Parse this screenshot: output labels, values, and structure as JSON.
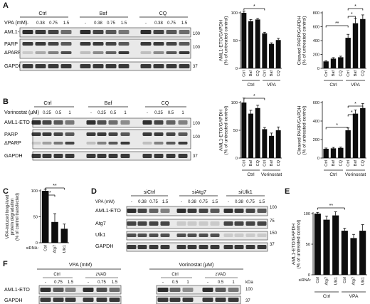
{
  "panel_letters": [
    "A",
    "B",
    "C",
    "D",
    "E",
    "F"
  ],
  "blots": {
    "A": {
      "groups": [
        "Ctrl",
        "Baf",
        "CQ"
      ],
      "dose_label": "VPA (mM)",
      "doses": [
        "-",
        "0.38",
        "0.75",
        "1.5",
        "-",
        "0.38",
        "0.75",
        "1.5",
        "-",
        "0.38",
        "0.75",
        "1.5"
      ],
      "rows": [
        "AML1-ETO",
        "PARP",
        "ΔPARP",
        "GAPDH"
      ],
      "mw": [
        "100",
        "100",
        "37"
      ]
    },
    "B": {
      "groups": [
        "Ctrl",
        "Baf",
        "CQ"
      ],
      "dose_label": "Vorinostat (μM)",
      "doses": [
        "-",
        "0.25",
        "0.5",
        "1",
        "-",
        "0.25",
        "0.5",
        "1",
        "-",
        "0.25",
        "0.5",
        "1"
      ],
      "rows": [
        "AML1-ETO",
        "PARP",
        "ΔPARP",
        "GAPDH"
      ],
      "mw": [
        "100",
        "100",
        "37"
      ]
    },
    "D": {
      "groups": [
        "siCtrl",
        "siAtg7",
        "siUlk1"
      ],
      "dose_label": "VPA (mM)",
      "doses": [
        "-",
        "0.38",
        "0.75",
        "1.5",
        "-",
        "0.38",
        "0.75",
        "1.5",
        "-",
        "0.38",
        "0.75",
        "1.5"
      ],
      "rows": [
        "AML1-ETO",
        "Atg7",
        "Ulk1",
        "GAPDH"
      ],
      "mw": [
        "100",
        "75",
        "150",
        "37"
      ]
    },
    "F": {
      "treatments": [
        "VPA (mM)",
        "Vorinostat (μM)"
      ],
      "groups": [
        "Ctrl",
        "zVAD",
        "Ctrl",
        "zVAD"
      ],
      "doses": [
        "-",
        "0.75",
        "1.5",
        "-",
        "0.75",
        "1.5",
        "-",
        "0.5",
        "1",
        "-",
        "0.5",
        "1"
      ],
      "rows": [
        "AML1-ETO",
        "GAPDH"
      ],
      "mw_unit": "kDa",
      "mw": [
        "100",
        "37"
      ]
    }
  },
  "chart_data": [
    {
      "id": "A-aml1eto",
      "type": "bar",
      "ylabel": "AML1-ETO/GAPDH\n(% of untreated control)",
      "ylim": [
        0,
        100
      ],
      "yticks": [
        "0",
        "50",
        "100"
      ],
      "categories": [
        "Ctrl",
        "Baf",
        "CQ",
        "Ctrl",
        "Baf",
        "CQ"
      ],
      "groups": [
        "Ctrl",
        "VPA"
      ],
      "values": [
        100,
        85,
        88,
        63,
        44,
        51
      ],
      "errors": [
        3,
        3,
        2,
        2,
        2,
        3
      ],
      "significance": [
        "*"
      ]
    },
    {
      "id": "A-parp",
      "type": "bar",
      "ylabel": "Cleaved PARP/GAPDH\n(% of untreated control)",
      "ylim": [
        0,
        800
      ],
      "yticks": [
        "0",
        "200",
        "400",
        "600",
        "800"
      ],
      "categories": [
        "Ctrl",
        "Baf",
        "CQ",
        "Ctrl",
        "Baf",
        "CQ"
      ],
      "groups": [
        "Ctrl",
        "VPA"
      ],
      "values": [
        100,
        140,
        160,
        440,
        650,
        710
      ],
      "errors": [
        10,
        15,
        15,
        50,
        70,
        60
      ],
      "significance": [
        "**",
        "*",
        "*"
      ]
    },
    {
      "id": "B-aml1eto",
      "type": "bar",
      "ylabel": "AML1-ETO/GAPDH\n(% of untreated control)",
      "ylim": [
        0,
        100
      ],
      "yticks": [
        "0",
        "50",
        "100"
      ],
      "categories": [
        "Ctrl",
        "Baf",
        "CQ",
        "Ctrl",
        "Baf",
        "CQ"
      ],
      "groups": [
        "Ctrl",
        "Vorinostat"
      ],
      "values": [
        100,
        80,
        90,
        52,
        40,
        50
      ],
      "errors": [
        8,
        6,
        5,
        3,
        5,
        6
      ],
      "significance": [
        "*"
      ]
    },
    {
      "id": "B-parp",
      "type": "bar",
      "ylabel": "Cleaved PARP/GAPDH\n(% of untreated control)",
      "ylim": [
        0,
        600
      ],
      "yticks": [
        "0",
        "200",
        "400",
        "600"
      ],
      "categories": [
        "Ctrl",
        "Baf",
        "CQ",
        "Ctrl",
        "Baf",
        "CQ"
      ],
      "groups": [
        "Ctrl",
        "Vorinostat"
      ],
      "values": [
        100,
        105,
        110,
        300,
        480,
        540
      ],
      "errors": [
        8,
        10,
        10,
        25,
        40,
        50
      ],
      "significance": [
        "*",
        "*",
        "*"
      ]
    },
    {
      "id": "C",
      "type": "bar",
      "ylabel": "VPA-induced long-lived\nprotein degradation\n(% of control transfected)",
      "ylim": [
        0,
        100
      ],
      "yticks": [
        "0",
        "50",
        "100"
      ],
      "categories": [
        "Ctrl",
        "Atg7",
        "Ulk1"
      ],
      "xprefix": "siRNA:",
      "values": [
        100,
        40,
        27
      ],
      "errors": [
        3,
        16,
        9
      ],
      "significance": [
        "*",
        "**"
      ]
    },
    {
      "id": "E",
      "type": "bar",
      "ylabel": "AML1-ETO/GAPDH\n(% of untreated control)",
      "ylim": [
        0,
        100
      ],
      "yticks": [
        "0",
        "50",
        "100"
      ],
      "categories": [
        "Ctrl",
        "Atg7",
        "Ulk1",
        "Ctrl",
        "Atg7",
        "Ulk1"
      ],
      "xprefix": "siRNA:",
      "groups": [
        "Ctrl",
        "VPA"
      ],
      "values": [
        100,
        90,
        97,
        72,
        60,
        72
      ],
      "errors": [
        2,
        6,
        6,
        4,
        6,
        10
      ],
      "significance": [
        "**"
      ]
    }
  ]
}
